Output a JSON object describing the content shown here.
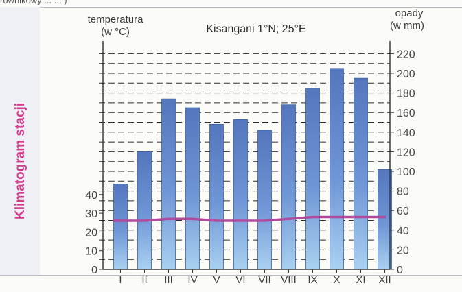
{
  "page": {
    "side_label": "Klimatogram stacji",
    "top_snippet": "równikowy ... ... )"
  },
  "chart_data": {
    "type": "bar",
    "title": "Kisangani 1°N; 25°E",
    "left_axis_title": [
      "temperatura",
      "(w °C)"
    ],
    "right_axis_title": [
      "opady",
      "(w mm)"
    ],
    "categories": [
      "I",
      "II",
      "III",
      "IV",
      "V",
      "VI",
      "VII",
      "VIII",
      "IX",
      "X",
      "XI",
      "XII"
    ],
    "precipitation_mm": [
      87,
      120,
      174,
      165,
      148,
      153,
      142,
      168,
      185,
      205,
      195,
      102
    ],
    "temperature_c": [
      26,
      26,
      27,
      27,
      26,
      26,
      26,
      27,
      28,
      28,
      28,
      28
    ],
    "left_axis": {
      "ticks": [
        0,
        10,
        20,
        30,
        40
      ],
      "range": [
        0,
        40
      ]
    },
    "right_axis": {
      "ticks": [
        0,
        20,
        40,
        60,
        80,
        100,
        120,
        140,
        160,
        180,
        200,
        220
      ],
      "range": [
        0,
        220
      ]
    },
    "grid": true,
    "colors": {
      "bar": "#6f96d6",
      "bar_top": "#5476bd",
      "bar_bottom": "#a9d1f0",
      "line": "#b04a9c",
      "grid": "#2e2e2e"
    }
  }
}
